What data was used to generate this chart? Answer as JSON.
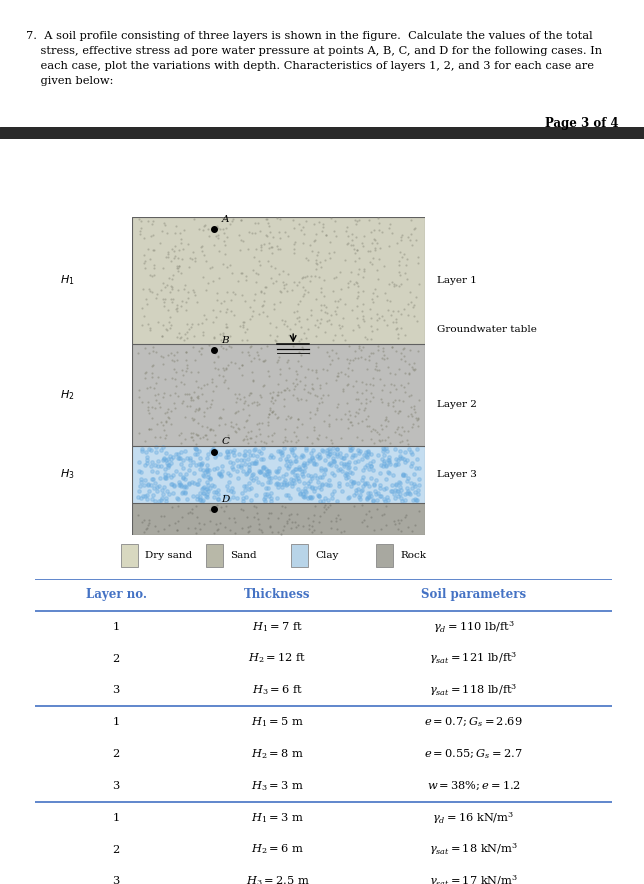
{
  "title_line1": "7.  A soil profile consisting of three layers is shown in the figure.  Calculate the values of the total",
  "title_line2": "    stress, effective stress ad pore water pressure at points A, B, C, and D for the following cases. In",
  "title_line3": "    each case, plot the variations with depth. Characteristics of layers 1, 2, and 3 for each case are",
  "title_line4": "    given below:",
  "page_label": "Page 3 of 4",
  "bg_color": "#ffffff",
  "header_bar_color": "#2a2a2a",
  "layer1_color": "#d0d0be",
  "layer2_color": "#b8b8a8",
  "layer3_color": "#b8d4e8",
  "rock_color": "#a8a8a0",
  "legend_dry_sand_color": "#d8d8c0",
  "legend_sand_color": "#b8b8a8",
  "legend_clay_color": "#b8d4e8",
  "legend_rock_color": "#a8a8a0",
  "table_header_color": "#4472c4",
  "table_line_color": "#4472c4",
  "col_headers": [
    "Layer no.",
    "Thickness",
    "Soil parameters"
  ],
  "table_rows": [
    {
      "layer": "1",
      "thickness": "$H_1 = 7$ ft",
      "params": "$\\gamma_d = 110$ lb/ft$^3$"
    },
    {
      "layer": "2",
      "thickness": "$H_2 = 12$ ft",
      "params": "$\\gamma_{sat} = 121$ lb/ft$^3$"
    },
    {
      "layer": "3",
      "thickness": "$H_3 = 6$ ft",
      "params": "$\\gamma_{sat} = 118$ lb/ft$^3$"
    },
    {
      "layer": "1",
      "thickness": "$H_1 = 5$ m",
      "params": "$e = 0.7; G_s = 2.69$"
    },
    {
      "layer": "2",
      "thickness": "$H_2 = 8$ m",
      "params": "$e = 0.55; G_s = 2.7$"
    },
    {
      "layer": "3",
      "thickness": "$H_3 = 3$ m",
      "params": "$w = 38\\%; e = 1.2$"
    },
    {
      "layer": "1",
      "thickness": "$H_1 = 3$ m",
      "params": "$\\gamma_d = 16$ kN/m$^3$"
    },
    {
      "layer": "2",
      "thickness": "$H_2 = 6$ m",
      "params": "$\\gamma_{sat} = 18$ kN/m$^3$"
    },
    {
      "layer": "3",
      "thickness": "$H_3 = 2.5$ m",
      "params": "$\\gamma_{sat} = 17$ kN/m$^3$"
    }
  ]
}
